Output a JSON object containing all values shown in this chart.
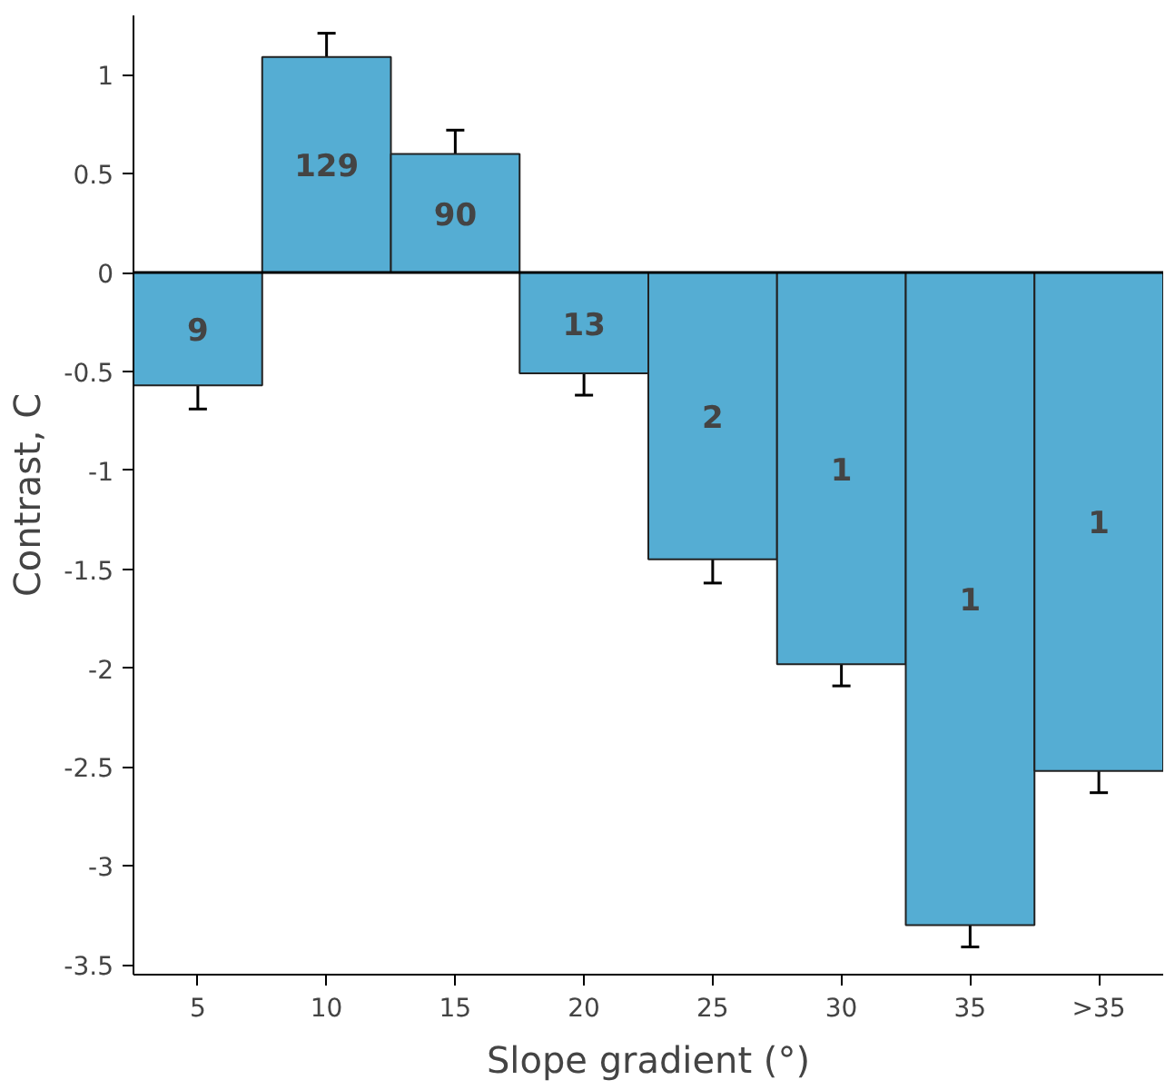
{
  "chart_data": {
    "type": "bar",
    "xlabel": "Slope gradient (°)",
    "ylabel": "Contrast, C",
    "categories": [
      "5",
      "10",
      "15",
      "20",
      "25",
      "30",
      "35",
      ">35"
    ],
    "values": [
      -0.57,
      1.09,
      0.6,
      -0.51,
      -1.45,
      -1.98,
      -3.3,
      -2.52
    ],
    "errors": [
      0.12,
      0.12,
      0.12,
      0.11,
      0.12,
      0.11,
      0.11,
      0.11
    ],
    "color": "#55add3",
    "ylim": [
      -3.55,
      1.3
    ],
    "yticks": [
      {
        "value": -3.5,
        "label": "-3.5"
      },
      -3,
      {
        "value": -2.5,
        "label": "-2.5"
      },
      -2,
      {
        "value": -1.5,
        "label": "-1.5"
      },
      -1,
      {
        "value": -0.5,
        "label": "-0.5"
      },
      0,
      {
        "value": 0.5,
        "label": "0.5"
      },
      1
    ],
    "grid": false,
    "ref_lines": [
      {
        "axis": "y",
        "value": 0,
        "color": "#000000"
      }
    ],
    "annotations": [
      "9",
      "129",
      "90",
      "13",
      "2",
      "1",
      "1",
      "1"
    ]
  }
}
